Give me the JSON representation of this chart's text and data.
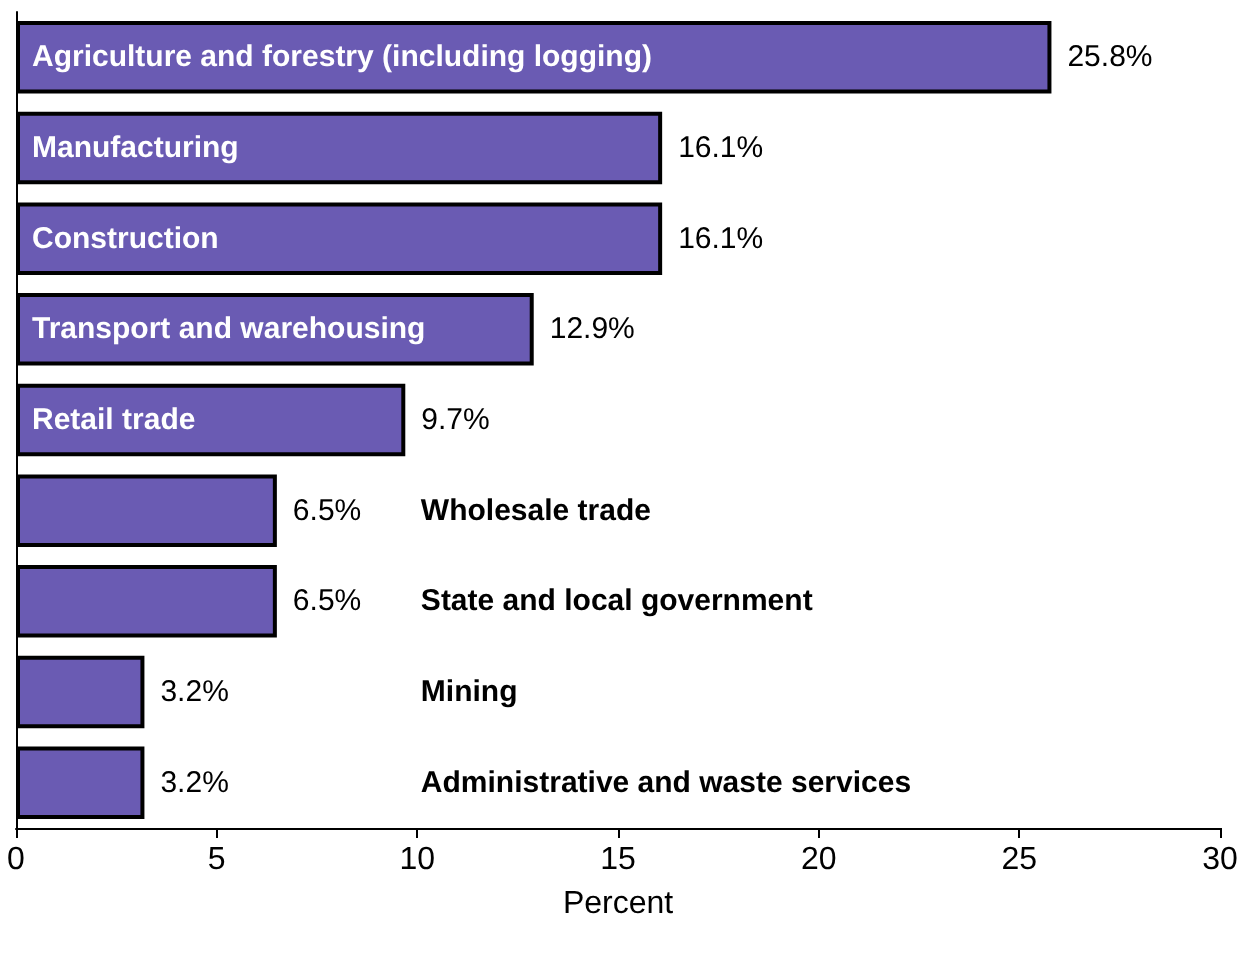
{
  "chart_data": {
    "type": "bar",
    "orientation": "horizontal",
    "xlabel": "Percent",
    "categories": [
      "Agriculture and forestry (including logging)",
      "Manufacturing",
      "Construction",
      "Transport and warehousing",
      "Retail trade",
      "Wholesale trade",
      "State and local government",
      "Mining",
      "Administrative and waste services"
    ],
    "values": [
      25.8,
      16.1,
      16.1,
      12.9,
      9.7,
      6.5,
      6.5,
      3.2,
      3.2
    ],
    "value_labels": [
      "25.8%",
      "16.1%",
      "16.1%",
      "12.9%",
      "9.7%",
      "6.5%",
      "6.5%",
      "3.2%",
      "3.2%"
    ],
    "color": "#6a5bb3",
    "xlim": [
      0,
      30
    ],
    "xticks": [
      0,
      5,
      10,
      15,
      20,
      25,
      30
    ],
    "grid": false
  }
}
